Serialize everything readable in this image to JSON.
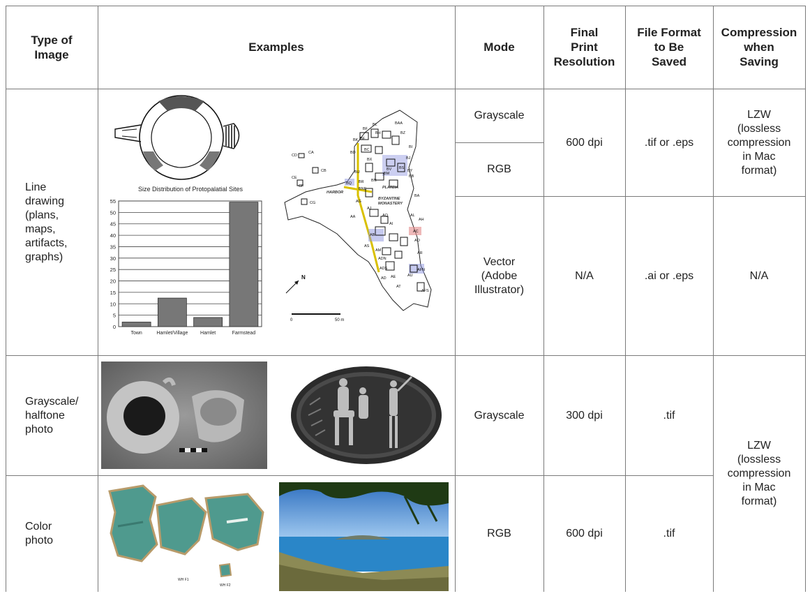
{
  "headers": {
    "type": "Type of\nImage",
    "examples": "Examples",
    "mode": "Mode",
    "resolution": "Final\nPrint\nResolution",
    "format": "File Format\nto Be\nSaved",
    "compression": "Compression\nwhen\nSaving"
  },
  "row_line": {
    "type": "Line\ndrawing\n(plans,\nmaps,\nartifacts,\ngraphs)",
    "mode_gray": "Grayscale",
    "mode_rgb": "RGB",
    "mode_vector": "Vector\n(Adobe\nIllustrator)",
    "res_raster": "600 dpi",
    "res_vector": "N/A",
    "format_raster": ".tif or .eps",
    "format_vector": ".ai or .eps",
    "comp_raster": "LZW\n(lossless\ncompression\nin Mac\nformat)",
    "comp_vector": "N/A"
  },
  "row_gray": {
    "type": "Grayscale/\nhalftone\nphoto",
    "mode": "Grayscale",
    "res": "300 dpi",
    "format": ".tif"
  },
  "row_color": {
    "type": "Color\nphoto",
    "mode": "RGB",
    "res": "600 dpi",
    "format": ".tif",
    "comp": "LZW\n(lossless\ncompression\nin Mac\nformat)"
  },
  "chart_data": {
    "type": "bar",
    "title": "Size Distribution of Protopalatial Sites",
    "categories": [
      "Town",
      "Hamlet/Village",
      "Hamlet",
      "Farmstead"
    ],
    "values": [
      2,
      12.5,
      4,
      54.5
    ],
    "ylim": [
      0,
      55
    ],
    "yticks": [
      0,
      5,
      10,
      15,
      20,
      25,
      30,
      35,
      40,
      45,
      50,
      55
    ],
    "xlabel": "",
    "ylabel": "",
    "grid": true,
    "bar_color": "#777777"
  },
  "map": {
    "labels": [
      "BF",
      "BL",
      "BAA",
      "BH",
      "BK",
      "BE",
      "BZ",
      "BD",
      "BC",
      "BI",
      "BX",
      "BJ",
      "BV",
      "BU",
      "BM",
      "BY",
      "BS",
      "BB",
      "BQ",
      "BN",
      "BR",
      "BNE",
      "BA",
      "CA",
      "CD",
      "CB",
      "CE",
      "CF",
      "CG",
      "AG",
      "AJ",
      "AA",
      "AQ",
      "AL",
      "AB",
      "AI",
      "AH",
      "AS",
      "AC",
      "AO",
      "AM",
      "AR",
      "ADN",
      "ADS",
      "AD",
      "AU",
      "AFN",
      "AE",
      "AT",
      "AFS"
    ],
    "place_labels": [
      "HARBOR",
      "PLATEIA",
      "BYZANTINE\nMONASTERY"
    ],
    "north": "N",
    "scale_start": "0",
    "scale_end": "50 m"
  },
  "photo_labels": {
    "fresco_a": "WH F1",
    "fresco_b": "WH F2"
  },
  "colors": {
    "grid": "#7a7a7a",
    "bar": "#777777",
    "fresco": "#4f9a8e",
    "sea": "#2a86c8",
    "sky": "#3f84c9"
  }
}
